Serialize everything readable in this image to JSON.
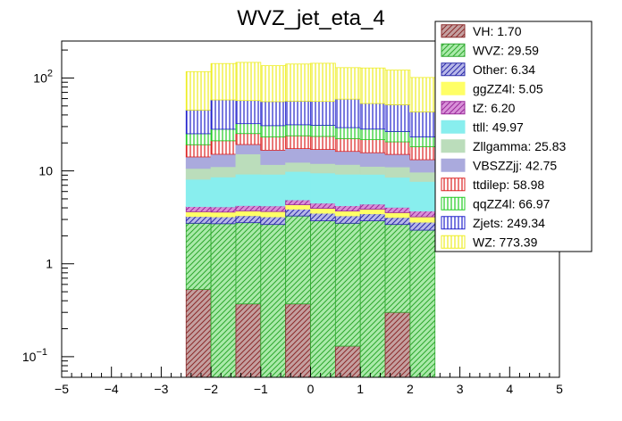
{
  "chart_data": {
    "type": "bar",
    "stacked": true,
    "title": "WVZ_jet_eta_4",
    "xlabel": "",
    "ylabel": "",
    "xlim": [
      -5,
      5
    ],
    "ylim": [
      0.06,
      250
    ],
    "yscale": "log",
    "x_ticks": [
      {
        "value": -5,
        "label": "−5"
      },
      {
        "value": -4,
        "label": "−4"
      },
      {
        "value": -3,
        "label": "−3"
      },
      {
        "value": -2,
        "label": "−2"
      },
      {
        "value": -1,
        "label": "−1"
      },
      {
        "value": 0,
        "label": "0"
      },
      {
        "value": 1,
        "label": "1"
      },
      {
        "value": 2,
        "label": "2"
      },
      {
        "value": 3,
        "label": "3"
      },
      {
        "value": 4,
        "label": "4"
      },
      {
        "value": 5,
        "label": "5"
      }
    ],
    "y_ticks": [
      {
        "value": 0.1,
        "base": "10",
        "exp": "−1"
      },
      {
        "value": 1,
        "base": "1",
        "exp": ""
      },
      {
        "value": 10,
        "base": "10",
        "exp": ""
      },
      {
        "value": 100,
        "base": "10",
        "exp": "2"
      }
    ],
    "bin_edges": [
      -2.5,
      -2.0,
      -1.5,
      -1.0,
      -0.5,
      0.0,
      0.5,
      1.0,
      1.5,
      2.0,
      2.5
    ],
    "legend_position": "top-right",
    "series": [
      {
        "name": "VH",
        "legend": "VH: 1.70",
        "fill": "#c4a0a0",
        "hatch": "#8b2a2a",
        "pattern": "diag",
        "values": [
          0.53,
          0.0,
          0.37,
          0.0,
          0.37,
          0.0,
          0.13,
          0.0,
          0.3,
          0.0
        ]
      },
      {
        "name": "WVZ",
        "legend": "WVZ: 29.59",
        "fill": "#aaeaaa",
        "hatch": "#2ea82e",
        "pattern": "diag",
        "values": [
          2.2,
          2.7,
          2.4,
          2.65,
          2.9,
          2.9,
          2.6,
          2.9,
          2.35,
          2.3
        ]
      },
      {
        "name": "Other",
        "legend": "Other: 6.34",
        "fill": "#b8b8e8",
        "hatch": "#2a2aaa",
        "pattern": "diag",
        "values": [
          0.5,
          0.5,
          0.52,
          0.55,
          0.6,
          0.6,
          0.55,
          0.55,
          0.5,
          0.5
        ]
      },
      {
        "name": "ggZZ4l",
        "legend": "ggZZ4l: 5.05",
        "fill": "#ffff66",
        "hatch": "#ffff66",
        "pattern": "solid",
        "values": [
          0.4,
          0.4,
          0.42,
          0.45,
          0.45,
          0.45,
          0.42,
          0.42,
          0.4,
          0.4
        ]
      },
      {
        "name": "tZ",
        "legend": "tZ: 6.20",
        "fill": "#d890d8",
        "hatch": "#9a2a9a",
        "pattern": "diag",
        "values": [
          0.5,
          0.5,
          0.52,
          0.55,
          0.55,
          0.55,
          0.52,
          0.52,
          0.5,
          0.5
        ]
      },
      {
        "name": "ttll",
        "legend": "ttll: 49.97",
        "fill": "#88eeee",
        "hatch": "#88eeee",
        "pattern": "solid",
        "values": [
          4.0,
          4.5,
          5.0,
          5.0,
          5.0,
          5.0,
          5.0,
          4.8,
          4.5,
          4.0
        ]
      },
      {
        "name": "Zllgamma",
        "legend": "Zllgamma: 25.83",
        "fill": "#bbddbb",
        "hatch": "#bbddbb",
        "pattern": "solid",
        "values": [
          2.5,
          2.5,
          6.0,
          2.5,
          2.5,
          2.5,
          2.5,
          2.0,
          2.5,
          2.0
        ]
      },
      {
        "name": "VBSZZjj",
        "legend": "VBSZZjj: 42.75",
        "fill": "#aaaadd",
        "hatch": "#aaaadd",
        "pattern": "solid",
        "values": [
          3.5,
          4.0,
          4.0,
          5.0,
          5.0,
          5.0,
          4.5,
          4.5,
          4.0,
          3.5
        ]
      },
      {
        "name": "ttdilep",
        "legend": "ttdilep: 58.98",
        "fill": "#ffffff",
        "hatch": "#dd2222",
        "pattern": "vert",
        "values": [
          5.0,
          6.0,
          6.0,
          6.5,
          6.5,
          6.5,
          6.0,
          6.0,
          5.5,
          5.0
        ]
      },
      {
        "name": "qqZZ4l",
        "legend": "qqZZ4l: 66.97",
        "fill": "#ffffff",
        "hatch": "#22cc22",
        "pattern": "vert",
        "values": [
          6.0,
          7.0,
          7.0,
          7.5,
          7.5,
          7.5,
          7.0,
          6.5,
          6.0,
          5.0
        ]
      },
      {
        "name": "Zjets",
        "legend": "Zjets: 249.34",
        "fill": "#ffffff",
        "hatch": "#2222cc",
        "pattern": "vert",
        "values": [
          20.0,
          30.0,
          25.0,
          25.0,
          25.0,
          25.0,
          30.0,
          25.0,
          25.0,
          20.0
        ]
      },
      {
        "name": "WZ",
        "legend": "WZ: 773.39",
        "fill": "#ffffff",
        "hatch": "#eeee22",
        "pattern": "vert",
        "values": [
          72.0,
          85.0,
          90.0,
          80.0,
          85.0,
          88.0,
          70.0,
          75.0,
          70.0,
          58.0
        ]
      }
    ]
  }
}
